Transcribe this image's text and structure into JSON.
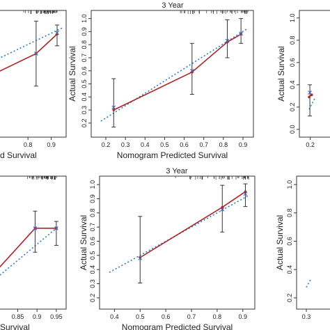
{
  "chart_data": [
    {
      "id": "top-left",
      "type": "line",
      "title": "",
      "xlabel": "d Survival",
      "ylabel": "",
      "xticks": [
        0.8,
        0.9
      ],
      "yticks": [],
      "xlim": [
        0.665,
        0.925
      ],
      "ylim": [
        0.1,
        1.0
      ],
      "rug": true,
      "reference_line": [
        [
          0.55,
          0.555
        ],
        [
          0.95,
          0.9
        ]
      ],
      "series": [
        {
          "role": "observed",
          "x": [
            0.65,
            0.835,
            0.925
          ],
          "y": [
            0.54,
            0.7,
            0.85
          ]
        },
        {
          "role": "bootstrap",
          "x": [
            0.835,
            0.925
          ],
          "y": [
            0.7,
            0.86
          ]
        }
      ],
      "error_bars": [
        {
          "x": 0.835,
          "low": 0.45,
          "high": 0.95
        },
        {
          "x": 0.925,
          "low": 0.76,
          "high": 0.92
        }
      ]
    },
    {
      "id": "top-middle",
      "type": "line",
      "title": "3 Year",
      "xlabel": "Nomogram Predicted Survival",
      "ylabel": "Actual Survival",
      "xticks": [
        0.2,
        0.3,
        0.4,
        0.5,
        0.6,
        0.7,
        0.8,
        0.9
      ],
      "yticks": [
        0.2,
        0.3,
        0.4,
        0.5,
        0.6,
        0.7,
        0.8,
        0.9,
        1.0
      ],
      "xlim": [
        0.175,
        0.925
      ],
      "ylim": [
        0.135,
        1.03
      ],
      "rug": true,
      "reference_line": [
        [
          0.175,
          0.215
        ],
        [
          0.925,
          0.925
        ]
      ],
      "series": [
        {
          "role": "observed",
          "x": [
            0.24,
            0.64,
            0.82,
            0.89
          ],
          "y": [
            0.3,
            0.59,
            0.82,
            0.88
          ]
        },
        {
          "role": "bootstrap",
          "x": [
            0.24,
            0.64,
            0.82,
            0.89
          ],
          "y": [
            0.32,
            0.6,
            0.83,
            0.885
          ]
        }
      ],
      "error_bars": [
        {
          "x": 0.24,
          "low": 0.17,
          "high": 0.54
        },
        {
          "x": 0.64,
          "low": 0.42,
          "high": 0.81
        },
        {
          "x": 0.82,
          "low": 0.7,
          "high": 0.99
        },
        {
          "x": 0.89,
          "low": 0.81,
          "high": 1.0
        }
      ]
    },
    {
      "id": "top-right",
      "type": "line",
      "title": "",
      "xlabel": "",
      "ylabel": "Actual Survival",
      "xticks": [
        0.2
      ],
      "yticks": [
        0.0,
        0.2,
        0.4,
        0.6,
        0.8,
        1.0
      ],
      "xlim": [
        0.18,
        1.0
      ],
      "ylim": [
        -0.02,
        1.03
      ],
      "rug": false,
      "reference_line": [
        [
          0.18,
          0.18
        ],
        [
          0.28,
          0.28
        ]
      ],
      "series": [
        {
          "role": "observed",
          "x": [
            0.18,
            0.225
          ],
          "y": [
            0.29,
            0.31
          ]
        },
        {
          "role": "bootstrap",
          "x": [
            0.193
          ],
          "y": [
            0.33
          ]
        }
      ],
      "error_bars": [
        {
          "x": 0.193,
          "low": 0.12,
          "high": 0.4
        }
      ]
    },
    {
      "id": "bottom-left",
      "type": "line",
      "title": "",
      "xlabel": "Survival",
      "ylabel": "",
      "xticks": [
        0.85,
        0.9,
        0.95
      ],
      "yticks": [],
      "xlim": [
        0.795,
        0.952
      ],
      "ylim": [
        0.84,
        1.02
      ],
      "rug": true,
      "reference_line": [
        [
          0.79,
          0.875
        ],
        [
          0.95,
          0.95
        ]
      ],
      "series": [
        {
          "role": "observed",
          "x": [
            0.79,
            0.895,
            0.95
          ],
          "y": [
            0.885,
            0.95,
            0.95
          ]
        },
        {
          "role": "bootstrap",
          "x": [
            0.895,
            0.95
          ],
          "y": [
            0.95,
            0.95
          ]
        }
      ],
      "error_bars": [
        {
          "x": 0.895,
          "low": 0.915,
          "high": 0.975
        },
        {
          "x": 0.95,
          "low": 0.925,
          "high": 0.96
        }
      ]
    },
    {
      "id": "bottom-middle",
      "type": "line",
      "title": "3 Year",
      "xlabel": "Nomogram Predicted Survival",
      "ylabel": "Actual Survival",
      "xticks": [
        0.4,
        0.5,
        0.6,
        0.7,
        0.8,
        0.9
      ],
      "yticks": [
        0.2,
        0.3,
        0.4,
        0.5,
        0.6,
        0.7,
        0.8,
        0.9,
        1.0
      ],
      "xlim": [
        0.38,
        0.925
      ],
      "ylim": [
        0.16,
        1.03
      ],
      "rug": true,
      "reference_line": [
        [
          0.38,
          0.38
        ],
        [
          0.925,
          0.925
        ]
      ],
      "series": [
        {
          "role": "observed",
          "x": [
            0.5,
            0.82,
            0.91
          ],
          "y": [
            0.485,
            0.84,
            0.95
          ]
        },
        {
          "role": "bootstrap",
          "x": [
            0.5,
            0.82,
            0.91
          ],
          "y": [
            0.48,
            0.825,
            0.935
          ]
        }
      ],
      "error_bars": [
        {
          "x": 0.5,
          "low": 0.305,
          "high": 0.775
        },
        {
          "x": 0.82,
          "low": 0.665,
          "high": 0.995
        },
        {
          "x": 0.91,
          "low": 0.845,
          "high": 1.005
        }
      ]
    },
    {
      "id": "bottom-right",
      "type": "line",
      "title": "",
      "xlabel": "",
      "ylabel": "Actual Survival",
      "xticks": [
        0.3
      ],
      "yticks": [
        0.2,
        0.4,
        0.6,
        0.8,
        1.0
      ],
      "xlim": [
        0.3,
        1.0
      ],
      "ylim": [
        0.16,
        1.03
      ],
      "rug": false,
      "reference_line": [
        [
          0.3,
          0.275
        ],
        [
          0.36,
          0.33
        ]
      ],
      "series": [],
      "error_bars": []
    }
  ],
  "colors": {
    "observed_line": "#b22222",
    "reference_line": "#1e7fd6",
    "bootstrap_marker": "#4060c0",
    "error_bar": "#333333",
    "frame": "#333333"
  }
}
